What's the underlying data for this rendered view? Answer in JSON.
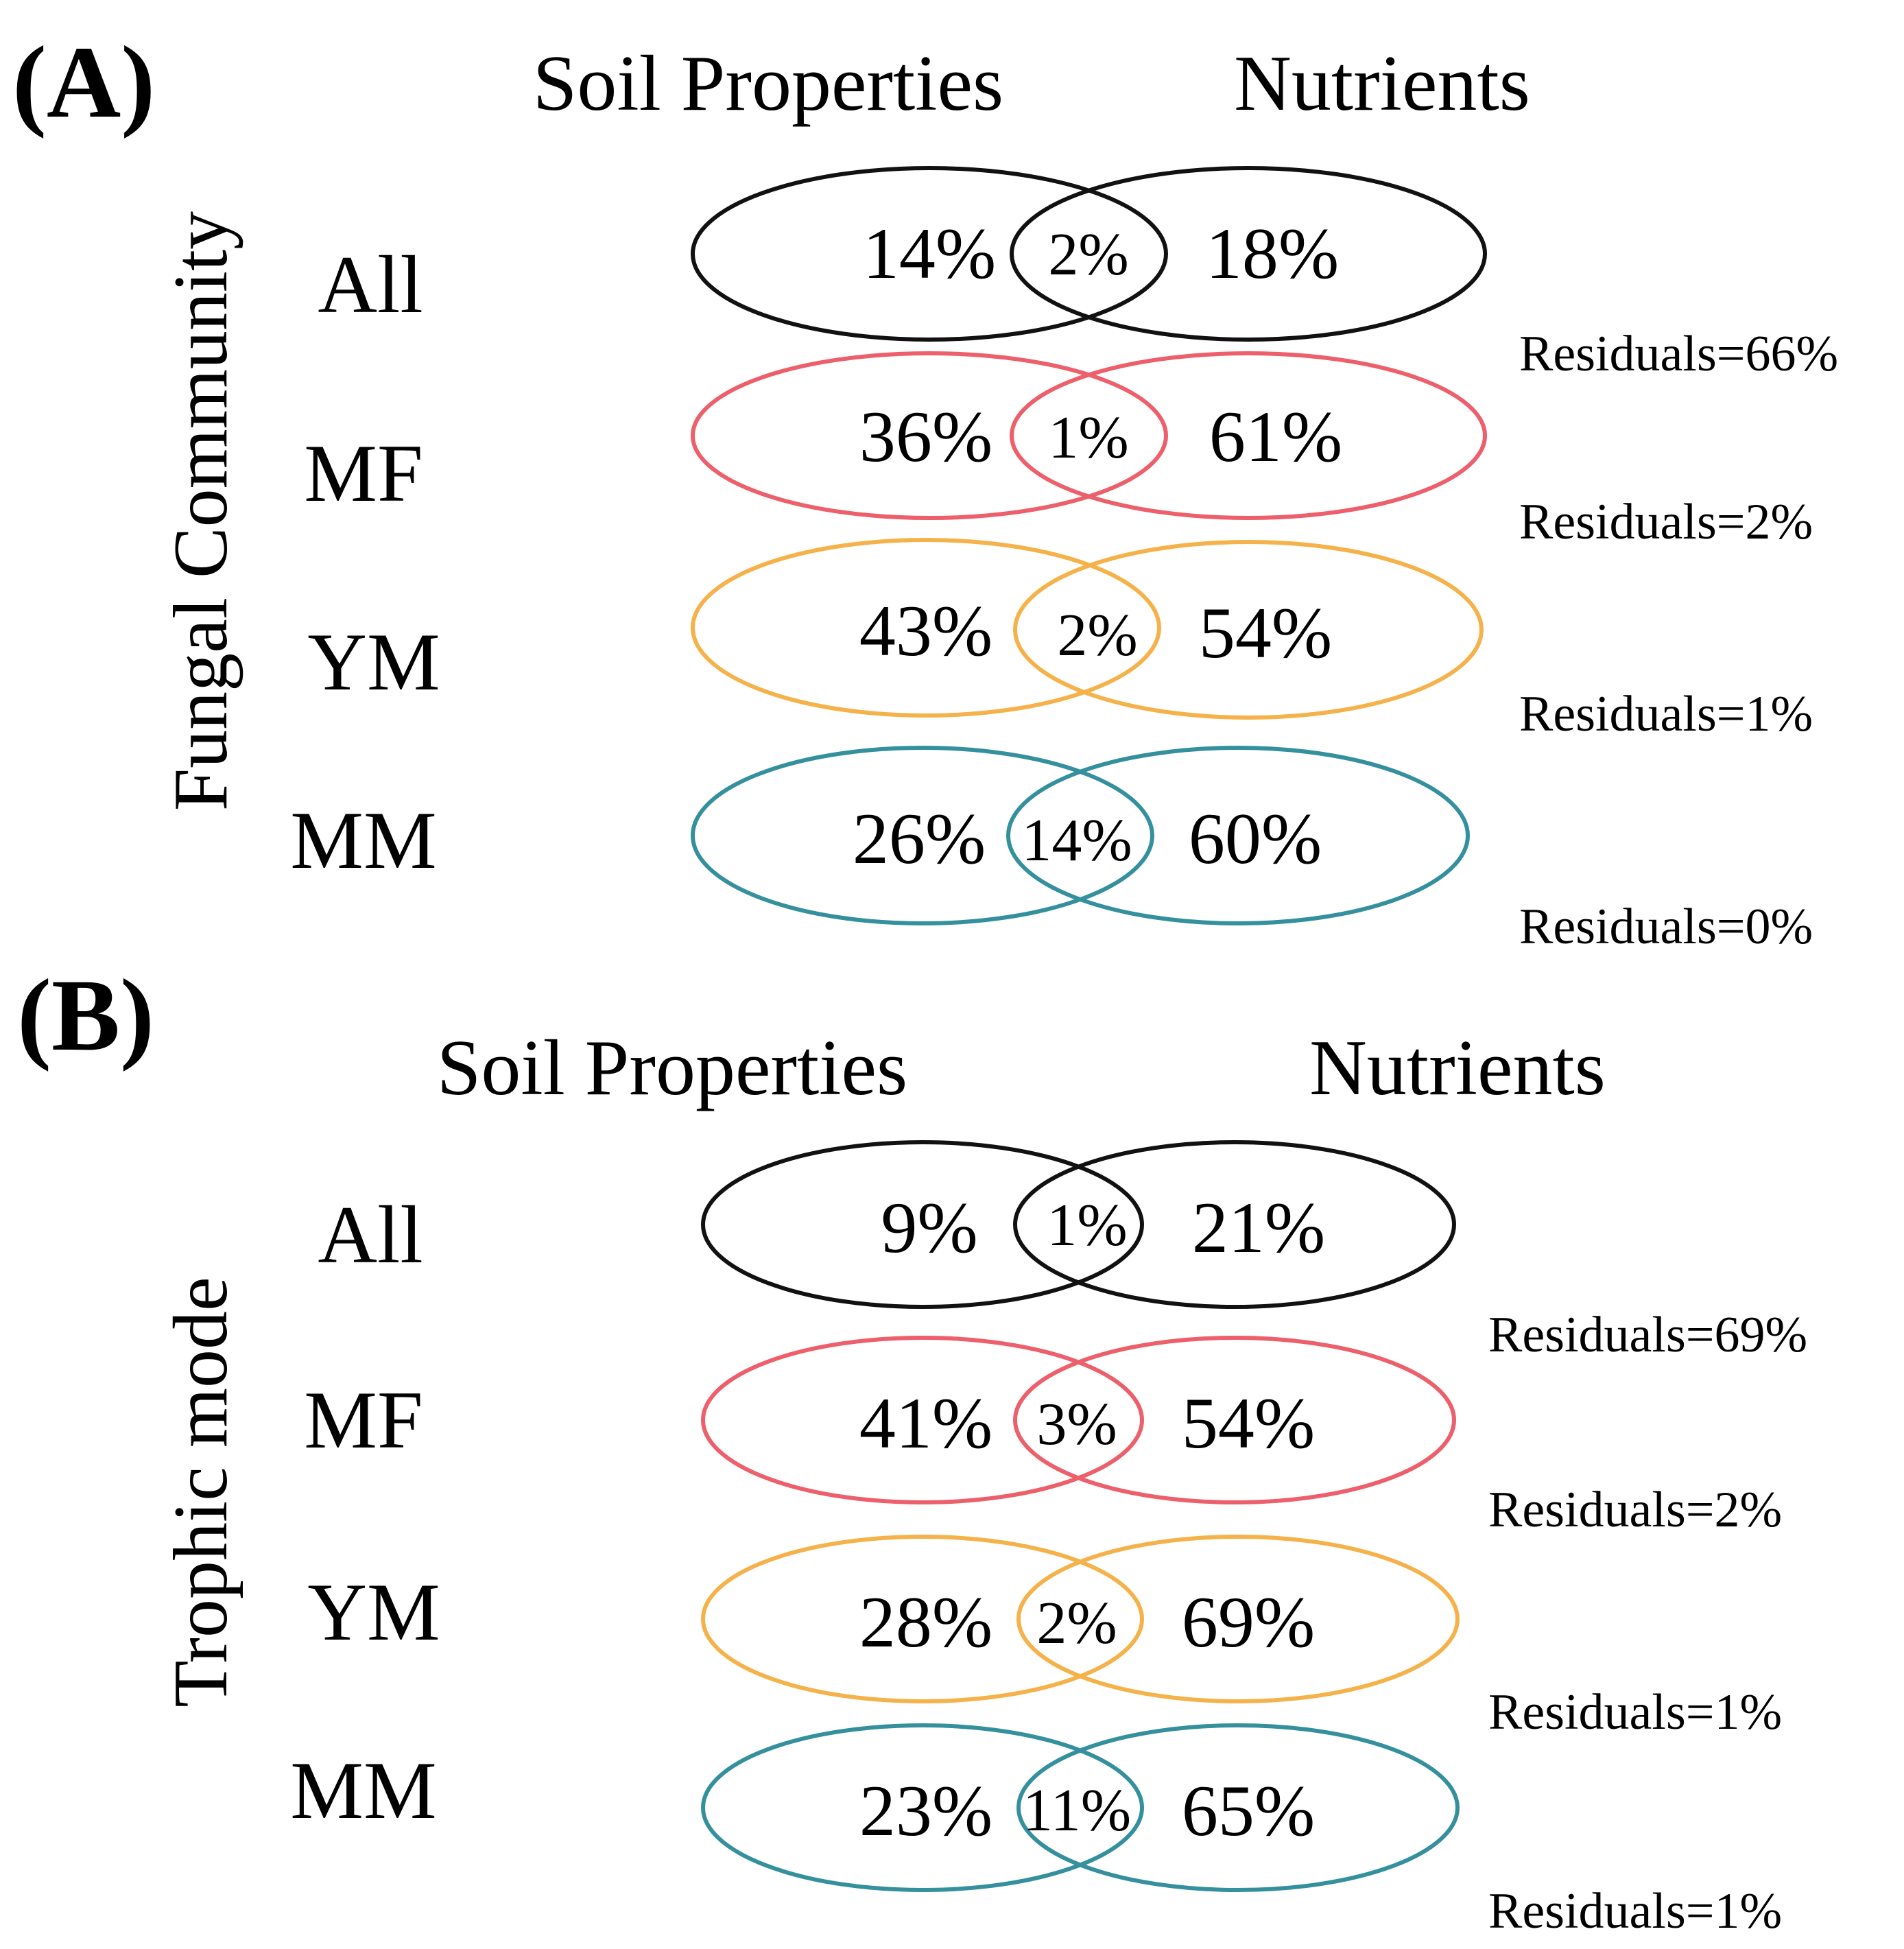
{
  "colors": {
    "All": "#111111",
    "MF": "#ec5f6b",
    "YM": "#f5b24a",
    "MM": "#35909e"
  },
  "panels": [
    {
      "id": "A",
      "label": "(A)",
      "y_axis_title": "Fungal Community",
      "left_header": "Soil Properties",
      "right_header": "Nutrients",
      "rows": [
        {
          "group": "All",
          "label": "All",
          "soil": "14%",
          "shared": "2%",
          "nutrients": "18%",
          "residuals": "Residuals=66%"
        },
        {
          "group": "MF",
          "label": "MF",
          "soil": "36%",
          "shared": "1%",
          "nutrients": "61%",
          "residuals": "Residuals=2%"
        },
        {
          "group": "YM",
          "label": "YM",
          "soil": "43%",
          "shared": "2%",
          "nutrients": "54%",
          "residuals": "Residuals=1%"
        },
        {
          "group": "MM",
          "label": "MM",
          "soil": "26%",
          "shared": "14%",
          "nutrients": "60%",
          "residuals": "Residuals=0%"
        }
      ]
    },
    {
      "id": "B",
      "label": "(B)",
      "y_axis_title": "Trophic mode",
      "left_header": "Soil Properties",
      "right_header": "Nutrients",
      "rows": [
        {
          "group": "All",
          "label": "All",
          "soil": "9%",
          "shared": "1%",
          "nutrients": "21%",
          "residuals": "Residuals=69%"
        },
        {
          "group": "MF",
          "label": "MF",
          "soil": "41%",
          "shared": "3%",
          "nutrients": "54%",
          "residuals": "Residuals=2%"
        },
        {
          "group": "YM",
          "label": "YM",
          "soil": "28%",
          "shared": "2%",
          "nutrients": "69%",
          "residuals": "Residuals=1%"
        },
        {
          "group": "MM",
          "label": "MM",
          "soil": "23%",
          "shared": "11%",
          "nutrients": "65%",
          "residuals": "Residuals=1%"
        }
      ]
    }
  ]
}
